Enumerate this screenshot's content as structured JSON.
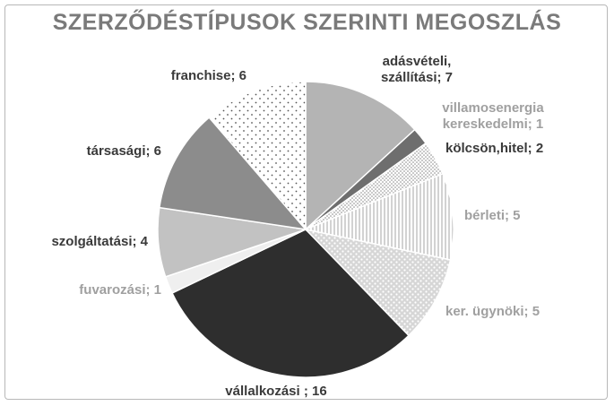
{
  "chart_data": {
    "type": "pie",
    "title": "SZERZŐDÉSTÍPUSOK SZERINTI MEGOSZLÁS",
    "slices": [
      {
        "label_lines": [
          "adásvételi,",
          "szállítási; 7"
        ],
        "category": "adásvételi, szállítási",
        "value": 7,
        "fill": "#b4b4b4",
        "pattern": "none",
        "label_color": "#3a3a3a"
      },
      {
        "label_lines": [
          "villamosenergia",
          "kereskedelmi; 1"
        ],
        "category": "villamosenergia kereskedelmi",
        "value": 1,
        "fill": "#6e6e6e",
        "pattern": "none",
        "label_color": "#a0a0a0"
      },
      {
        "label_lines": [
          "kölcsön,hitel; 2"
        ],
        "category": "kölcsön,hitel",
        "value": 2,
        "fill": "#ffffff",
        "pattern": "fine-dots",
        "label_color": "#3a3a3a"
      },
      {
        "label_lines": [
          "bérleti; 5"
        ],
        "category": "bérleti",
        "value": 5,
        "fill": "#ffffff",
        "pattern": "vertical-lines",
        "label_color": "#a0a0a0"
      },
      {
        "label_lines": [
          "ker. ügynöki; 5"
        ],
        "category": "ker. ügynöki",
        "value": 5,
        "fill": "#d6d6d6",
        "pattern": "dots",
        "label_color": "#a0a0a0"
      },
      {
        "label_lines": [
          "vállalkozási ; 16"
        ],
        "category": "vállalkozási",
        "value": 16,
        "fill": "#2e2e2e",
        "pattern": "none",
        "label_color": "#3a3a3a"
      },
      {
        "label_lines": [
          "fuvarozási; 1"
        ],
        "category": "fuvarozási",
        "value": 1,
        "fill": "#efefef",
        "pattern": "none",
        "label_color": "#a0a0a0"
      },
      {
        "label_lines": [
          "szolgáltatási; 4"
        ],
        "category": "szolgáltatási",
        "value": 4,
        "fill": "#c2c2c2",
        "pattern": "none",
        "label_color": "#3a3a3a"
      },
      {
        "label_lines": [
          "társasági; 6"
        ],
        "category": "társasági",
        "value": 6,
        "fill": "#8c8c8c",
        "pattern": "none",
        "label_color": "#3a3a3a"
      },
      {
        "label_lines": [
          "franchise; 6"
        ],
        "category": "franchise",
        "value": 6,
        "fill": "#ffffff",
        "pattern": "sparse-dots",
        "label_color": "#3a3a3a"
      }
    ],
    "start_angle": "12 o'clock",
    "direction": "clockwise",
    "legend": "none"
  }
}
